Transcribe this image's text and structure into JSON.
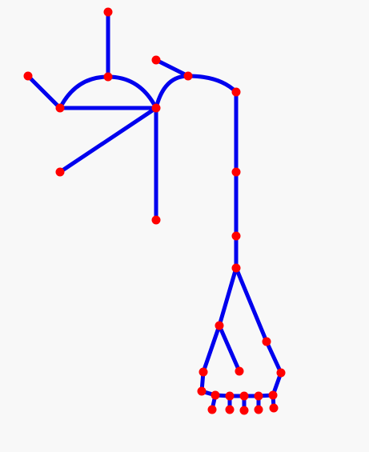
{
  "diagram": {
    "type": "node-link graph",
    "colors": {
      "background": "#f8f8f8",
      "edge": "#0000ee",
      "node": "#ff0000"
    },
    "nodes": [
      "n1",
      "n2",
      "n3",
      "n4",
      "n5",
      "n6",
      "n7",
      "n8",
      "n9",
      "n10",
      "n11",
      "n12",
      "n13",
      "n14",
      "n15",
      "n16",
      "n17",
      "n18",
      "n19",
      "n20",
      "n21",
      "n22",
      "n23",
      "n24",
      "n25",
      "n26",
      "n27",
      "n28",
      "n29",
      "n30",
      "n31",
      "n32"
    ],
    "edges": [
      [
        "n1",
        "n2"
      ],
      [
        "n2",
        "n3"
      ],
      [
        "n3",
        "n4"
      ],
      [
        "n2",
        "n5"
      ],
      [
        "n5",
        "n6"
      ],
      [
        "n5",
        "n7"
      ],
      [
        "n8",
        "n9"
      ],
      [
        "n9",
        "n10"
      ],
      [
        "n10",
        "n11"
      ],
      [
        "n11",
        "n12"
      ],
      [
        "n12",
        "n13"
      ],
      [
        "n13",
        "n14"
      ],
      [
        "n14",
        "n15"
      ],
      [
        "n14",
        "n16"
      ],
      [
        "n13",
        "n17"
      ],
      [
        "n17",
        "n18"
      ],
      [
        "n16",
        "n19"
      ],
      [
        "n19",
        "n20"
      ],
      [
        "n20",
        "n21"
      ],
      [
        "n21",
        "n22"
      ],
      [
        "n22",
        "n23"
      ],
      [
        "n23",
        "n24"
      ],
      [
        "n24",
        "n18"
      ],
      [
        "n20",
        "n25"
      ],
      [
        "n21",
        "n26"
      ],
      [
        "n22",
        "n27"
      ],
      [
        "n23",
        "n28"
      ],
      [
        "n24",
        "n29"
      ]
    ]
  }
}
